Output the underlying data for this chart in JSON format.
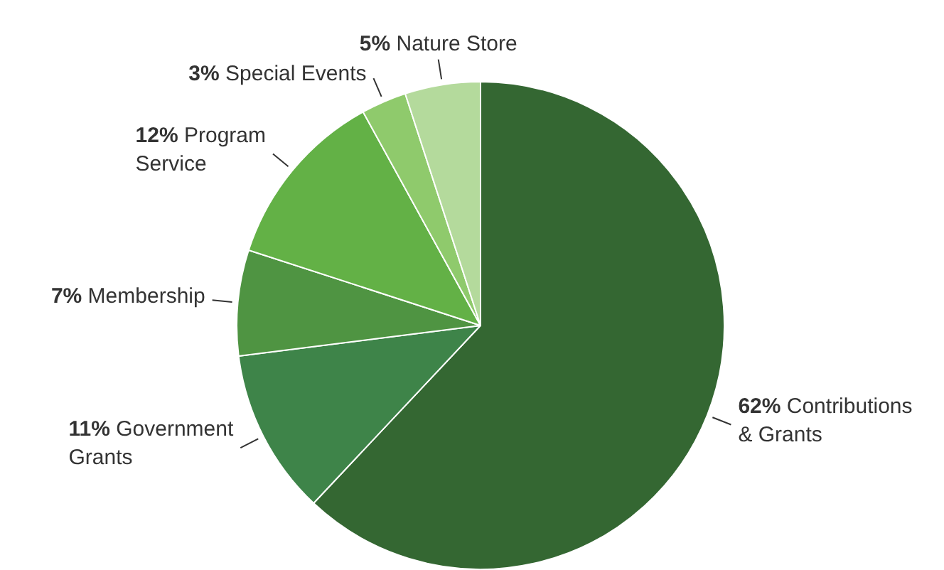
{
  "chart_data": {
    "type": "pie",
    "categories": [
      "Contributions & Grants",
      "Government Grants",
      "Membership",
      "Program Service",
      "Special Events",
      "Nature Store"
    ],
    "values": [
      62,
      11,
      7,
      12,
      3,
      5
    ],
    "value_labels": [
      "62%",
      "11%",
      "7%",
      "12%",
      "3%",
      "5%"
    ],
    "colors": [
      "#346732",
      "#3e8449",
      "#4f9442",
      "#63b146",
      "#8fca6c",
      "#b4da9c"
    ],
    "legend": false
  }
}
